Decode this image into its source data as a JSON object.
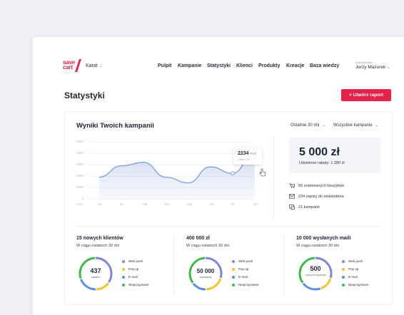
{
  "brand": {
    "logo_text": "save cart",
    "account": "Karat"
  },
  "nav": [
    "Pulpit",
    "Kampanie",
    "Statystyki",
    "Klienci",
    "Produkty",
    "Kreacje",
    "Baza wiedzy"
  ],
  "user": {
    "role": "Administrator",
    "name": "Jerzy Mazurek"
  },
  "page": {
    "title": "Statystyki",
    "create_button": "+ Utwórz raport"
  },
  "panel": {
    "title": "Wyniki Twoich kampanii",
    "period_select": "Ostatnie 30 dni",
    "campaign_select": "Wszystkie kampanie"
  },
  "chart_data": {
    "type": "area",
    "categories": [
      "sty",
      "lut",
      "mar",
      "kwi",
      "maj",
      "cze",
      "lip",
      "sie"
    ],
    "y_ticks": [
      "5000",
      "4000",
      "3000",
      "2000",
      "1000",
      "0"
    ],
    "ylim": [
      0,
      5000
    ],
    "x_start_label": "zero",
    "series": [
      {
        "values": [
          1900,
          2900,
          3200,
          1900,
          1400,
          2800,
          2234,
          4100
        ]
      }
    ],
    "tooltip": {
      "value": "2234",
      "unit": "PLN",
      "sub": "3 lipca '18"
    },
    "color": "#7f9ed8"
  },
  "summary": {
    "total": "5 000 zł",
    "discounts": "Udzielone rabaty: 1 280 zł",
    "stats": [
      "56 uratowanych koszyków",
      "234 zapisy do newslettera",
      "21 kampanii"
    ]
  },
  "blocks": [
    {
      "title": "15 nowych klientów",
      "sub": "W ciągu ostatnich 30 dni",
      "value": "437",
      "label": "ogółem"
    },
    {
      "title": "400 000 zł",
      "sub": "W ciągu ostatnich 30 dni",
      "value": "50 000",
      "label": "transakcji"
    },
    {
      "title": "10 000 wysłanych maili",
      "sub": "W ciągu ostatnich 30 dni",
      "value": "500",
      "label": "nowych zapisów"
    }
  ],
  "legend": [
    {
      "label": "Web push",
      "color": "#7f86d8"
    },
    {
      "label": "Pop up",
      "color": "#f2c230"
    },
    {
      "label": "E-mail",
      "color": "#5b8de0"
    },
    {
      "label": "Nieprzypisane",
      "color": "#3fb84a"
    }
  ],
  "donuts": [
    [
      0.35,
      0.15,
      0.2,
      0.3
    ],
    [
      0.3,
      0.2,
      0.15,
      0.35
    ],
    [
      0.3,
      0.15,
      0.2,
      0.35
    ]
  ]
}
